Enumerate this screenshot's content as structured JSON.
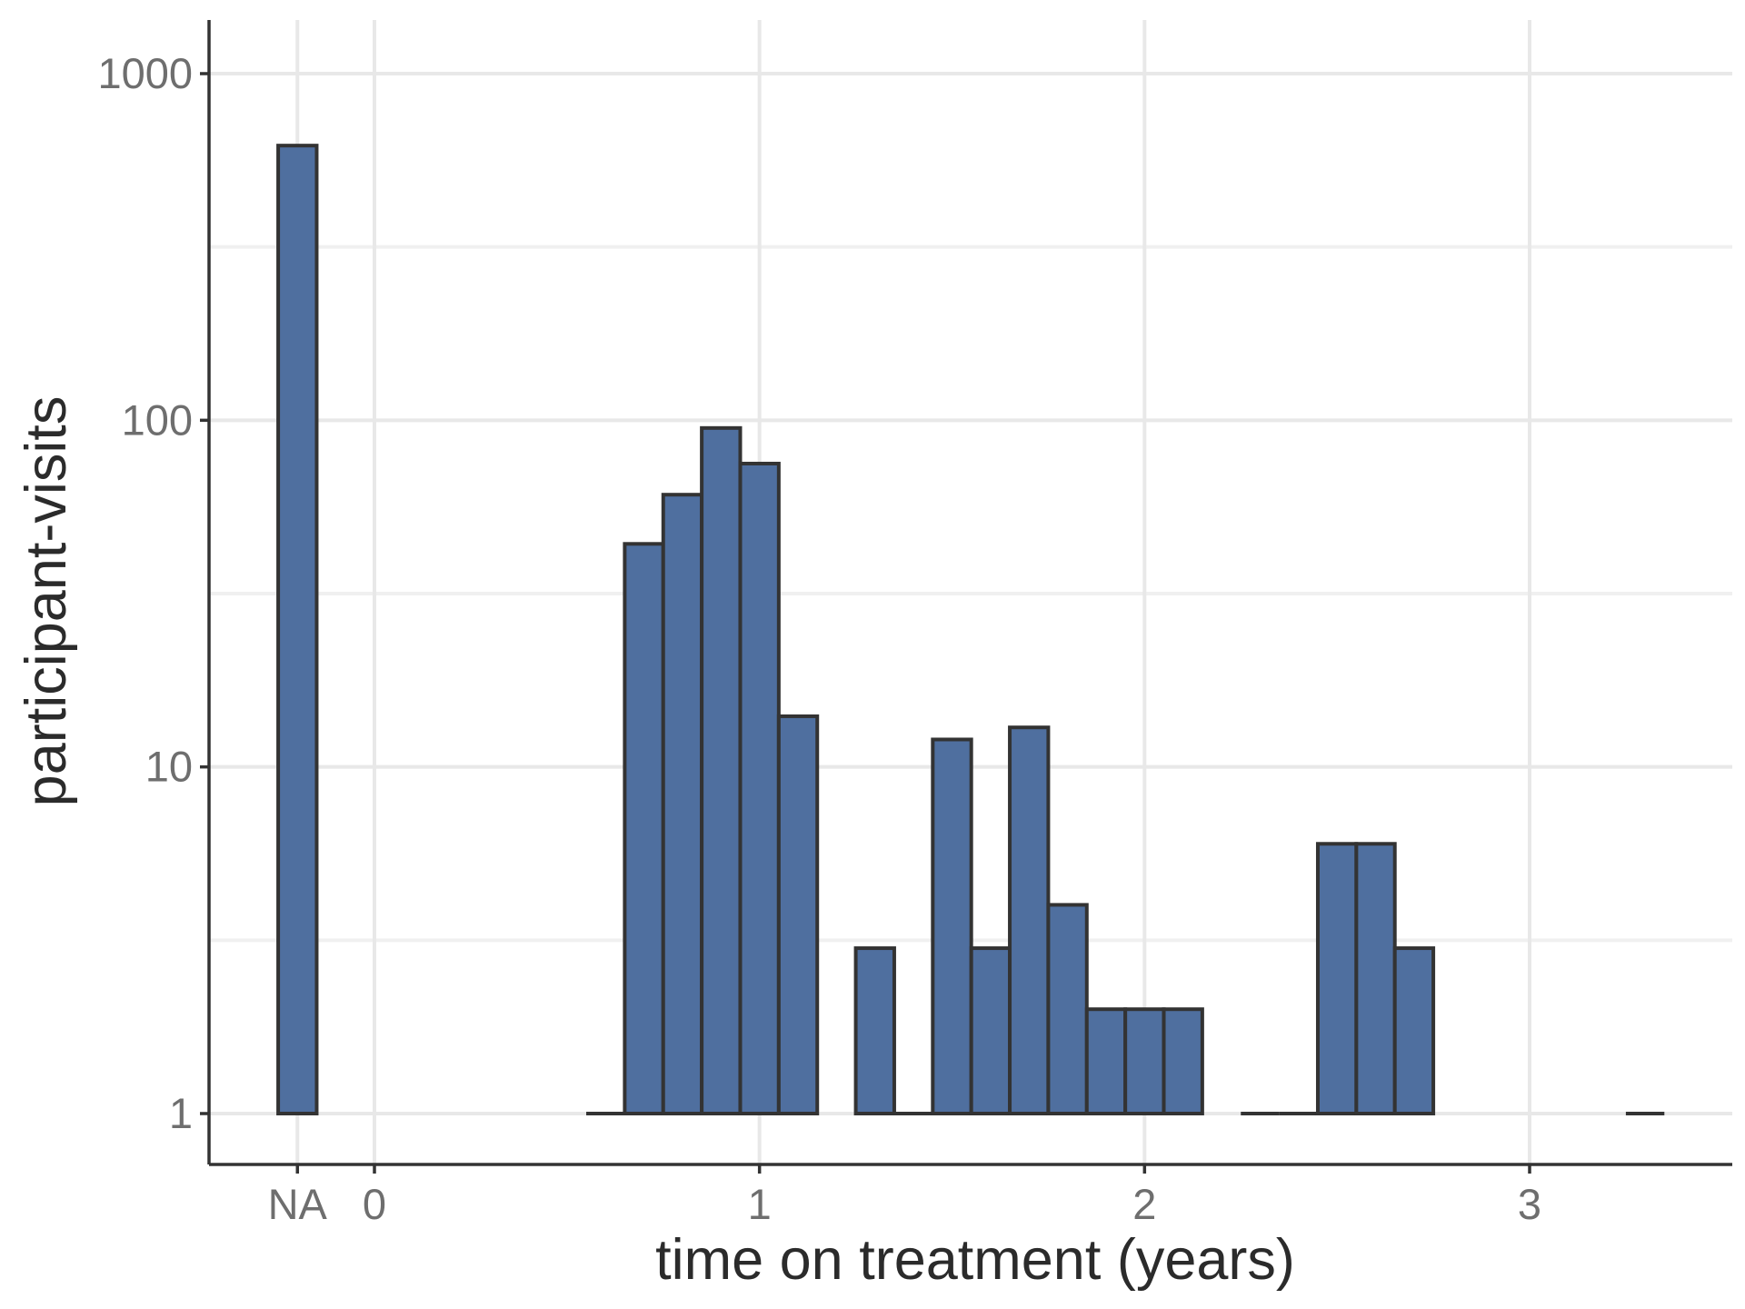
{
  "chart_data": {
    "type": "bar",
    "title": "",
    "xlabel": "time on treatment (years)",
    "ylabel": "participant-visits",
    "y_scale": "log10",
    "ylim": [
      0.75,
      1400
    ],
    "y_ticks": [
      1,
      10,
      100,
      1000
    ],
    "y_tick_labels": [
      "1",
      "10",
      "100",
      "1000"
    ],
    "x_ticks": [
      0,
      1,
      2,
      3
    ],
    "x_tick_labels": [
      "0",
      "1",
      "2",
      "3"
    ],
    "x_range": [
      -0.43,
      3.52
    ],
    "bin_width": 0.1,
    "na_bar": {
      "label": "NA",
      "value": 620
    },
    "bins": [
      {
        "x": 0.6,
        "value": 0
      },
      {
        "x": 0.7,
        "value": 44
      },
      {
        "x": 0.8,
        "value": 61
      },
      {
        "x": 0.9,
        "value": 95
      },
      {
        "x": 1.0,
        "value": 75
      },
      {
        "x": 1.1,
        "value": 14
      },
      {
        "x": 1.2,
        "value": null
      },
      {
        "x": 1.3,
        "value": 3
      },
      {
        "x": 1.4,
        "value": 0
      },
      {
        "x": 1.5,
        "value": 12
      },
      {
        "x": 1.6,
        "value": 3
      },
      {
        "x": 1.7,
        "value": 13
      },
      {
        "x": 1.8,
        "value": 4
      },
      {
        "x": 1.9,
        "value": 2
      },
      {
        "x": 2.0,
        "value": 2
      },
      {
        "x": 2.1,
        "value": 2
      },
      {
        "x": 2.2,
        "value": null
      },
      {
        "x": 2.3,
        "value": 0
      },
      {
        "x": 2.4,
        "value": 0
      },
      {
        "x": 2.5,
        "value": 6
      },
      {
        "x": 2.6,
        "value": 6
      },
      {
        "x": 2.7,
        "value": 3
      },
      {
        "x": 3.3,
        "value": 0
      }
    ],
    "grid": true,
    "legend": "none",
    "colors": {
      "bar_fill": "#4f6f9f",
      "bar_outline": "#333333",
      "grid": "#e8e8e8",
      "axis": "#333333"
    }
  }
}
